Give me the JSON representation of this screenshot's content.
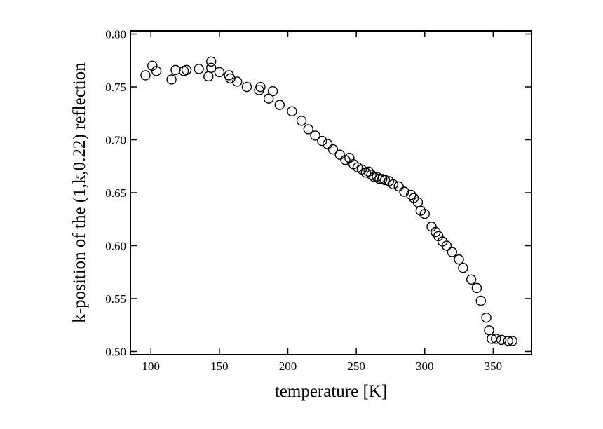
{
  "chart_data": {
    "type": "scatter",
    "xlabel": "temperature [K]",
    "ylabel": "k-position of the (1,k,0.22) reflection",
    "xlim": [
      85,
      378
    ],
    "ylim": [
      0.497,
      0.803
    ],
    "xticks": [
      100,
      150,
      200,
      250,
      300,
      350
    ],
    "yticks": [
      0.5,
      0.55,
      0.6,
      0.65,
      0.7,
      0.75,
      0.8
    ],
    "grid": false,
    "marker": "open-circle",
    "colors": {
      "marker": "#000000",
      "axes": "#000000",
      "background": "#ffffff"
    },
    "series": [
      {
        "x": [
          96,
          101,
          104,
          115,
          118,
          124,
          126,
          135,
          142,
          144,
          144,
          150,
          157,
          158,
          163,
          170,
          179,
          180,
          186,
          189,
          194,
          203,
          210,
          215,
          220,
          225,
          229,
          233,
          238,
          242,
          245,
          248,
          251,
          254,
          257,
          259,
          261,
          263,
          265,
          267,
          269,
          271,
          274,
          277,
          281,
          285,
          290,
          292,
          295,
          297,
          300,
          305,
          308,
          310,
          313,
          316,
          320,
          325,
          328,
          334,
          338,
          341,
          345,
          347,
          349,
          352,
          356,
          361,
          364
        ],
        "y": [
          0.761,
          0.77,
          0.765,
          0.757,
          0.766,
          0.765,
          0.766,
          0.767,
          0.76,
          0.774,
          0.768,
          0.764,
          0.761,
          0.758,
          0.755,
          0.75,
          0.747,
          0.75,
          0.739,
          0.746,
          0.733,
          0.727,
          0.718,
          0.71,
          0.704,
          0.699,
          0.696,
          0.691,
          0.686,
          0.681,
          0.683,
          0.677,
          0.674,
          0.672,
          0.669,
          0.67,
          0.667,
          0.665,
          0.665,
          0.663,
          0.663,
          0.662,
          0.661,
          0.658,
          0.656,
          0.651,
          0.648,
          0.645,
          0.641,
          0.633,
          0.63,
          0.618,
          0.613,
          0.609,
          0.604,
          0.6,
          0.594,
          0.587,
          0.579,
          0.568,
          0.56,
          0.548,
          0.532,
          0.52,
          0.512,
          0.512,
          0.511,
          0.51,
          0.51
        ]
      }
    ]
  }
}
